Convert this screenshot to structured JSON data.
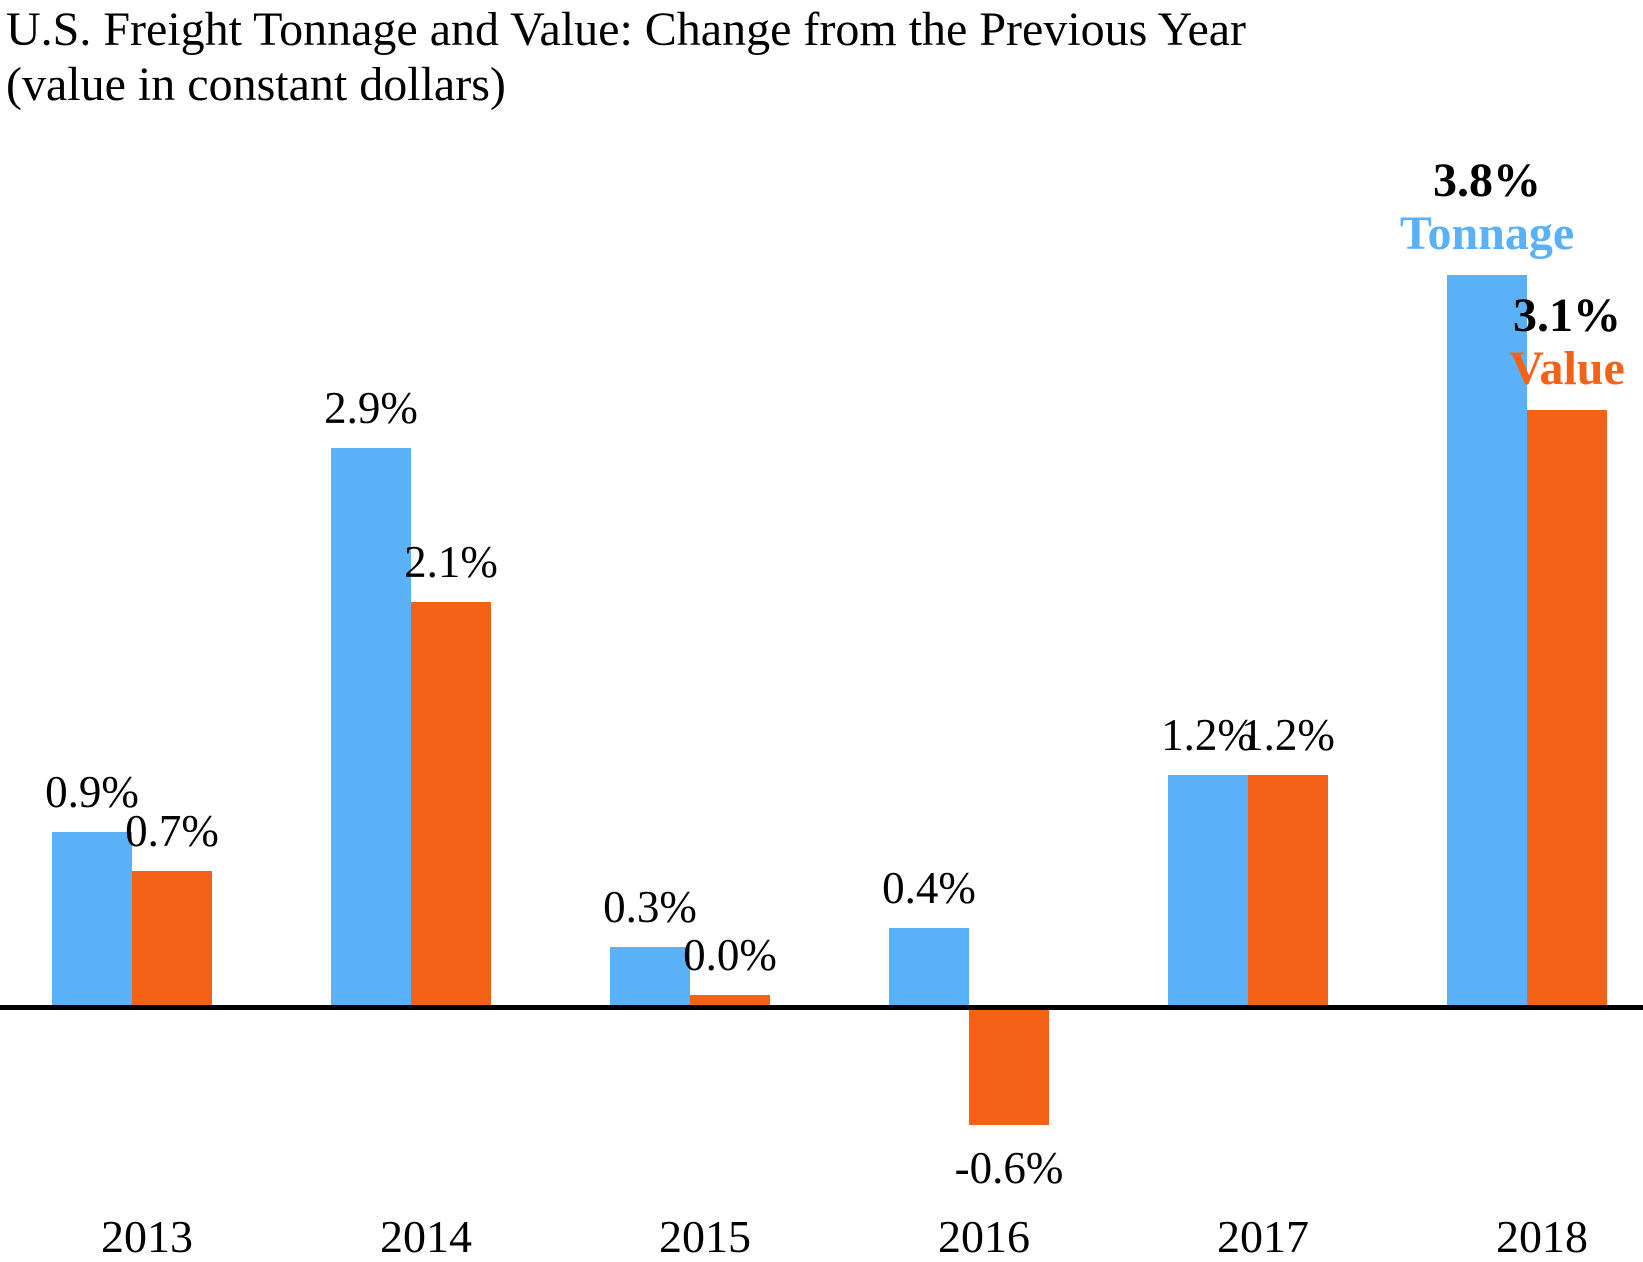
{
  "chart_data": {
    "type": "bar",
    "title": "U.S. Freight Tonnage and Value: Change from the Previous Year",
    "subtitle": "(value in constant dollars)",
    "categories": [
      "2013",
      "2014",
      "2015",
      "2016",
      "2017",
      "2018"
    ],
    "series": [
      {
        "name": "Tonnage",
        "color": "#5AB1F7",
        "values": [
          0.9,
          2.9,
          0.3,
          0.4,
          1.2,
          3.8
        ],
        "labels": [
          "0.9%",
          "2.9%",
          "0.3%",
          "0.4%",
          "1.2%",
          "3.8%"
        ]
      },
      {
        "name": "Value",
        "color": "#F46217",
        "values": [
          0.7,
          2.1,
          0.0,
          -0.6,
          1.2,
          3.1
        ],
        "labels": [
          "0.7%",
          "2.1%",
          "0.0%",
          "-0.6%",
          "1.2%",
          "3.1%"
        ]
      }
    ],
    "annotated_category": "2018",
    "baseline": 0,
    "ylim": [
      -0.8,
      4.2
    ],
    "grid": false,
    "y_axis_visible": false,
    "x_axis_line_color": "#000000",
    "legend_position": "inline-last-group",
    "xlabel": "",
    "ylabel": ""
  }
}
